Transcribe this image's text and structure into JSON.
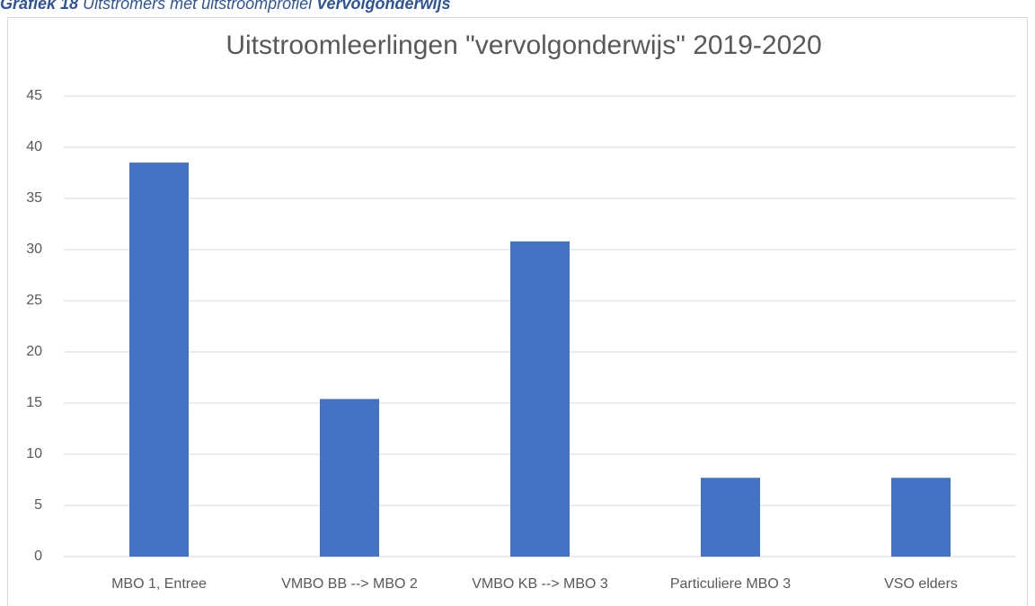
{
  "caption": {
    "label": "Grafiek 18",
    "text": "Uitstromers met uitstroomprofiel",
    "emphasis": "Vervolgonderwijs"
  },
  "chart_data": {
    "type": "bar",
    "title": "Uitstroomleerlingen \"vervolgonderwijs\" 2019-2020",
    "categories": [
      "MBO 1, Entree",
      "VMBO BB --> MBO 2",
      "VMBO KB --> MBO 3",
      "Particuliere MBO 3",
      "VSO elders"
    ],
    "values": [
      38.5,
      15.4,
      30.8,
      7.7,
      7.7
    ],
    "color": "#4472c4",
    "ylim": [
      0,
      45
    ],
    "yticks": [
      0,
      5,
      10,
      15,
      20,
      25,
      30,
      35,
      40,
      45
    ],
    "grid": true
  }
}
